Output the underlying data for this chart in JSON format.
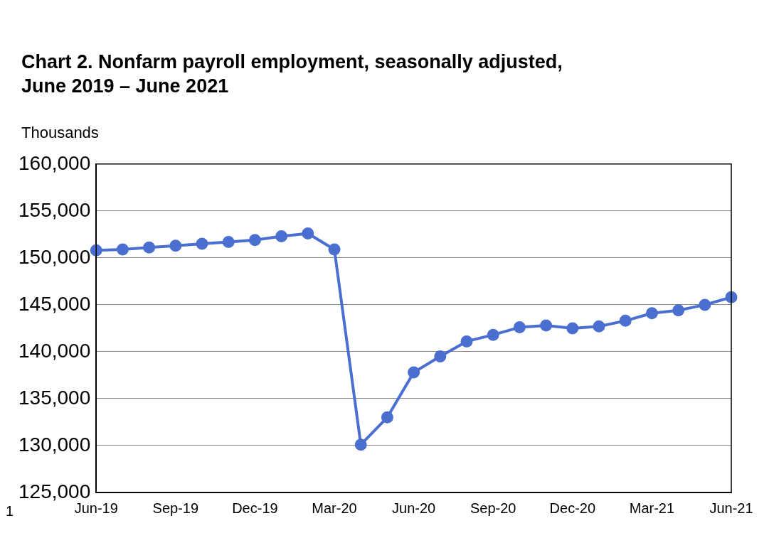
{
  "chart_data": {
    "type": "line",
    "title": "Chart 2. Nonfarm payroll employment, seasonally adjusted,\nJune 2019 – June 2021",
    "ylabel": "Thousands",
    "categories": [
      "Jun-19",
      null,
      null,
      "Sep-19",
      null,
      null,
      "Dec-19",
      null,
      null,
      "Mar-20",
      null,
      null,
      "Jun-20",
      null,
      null,
      "Sep-20",
      null,
      null,
      "Dec-20",
      null,
      null,
      "Mar-21",
      null,
      null,
      "Jun-21"
    ],
    "series": [
      {
        "color": "#4a6fd0",
        "values": [
          150800,
          150900,
          151100,
          151300,
          151500,
          151700,
          151900,
          152300,
          152600,
          150900,
          130100,
          133000,
          137800,
          139500,
          141100,
          141800,
          142600,
          142800,
          142500,
          142700,
          143300,
          144100,
          144400,
          145000,
          145800
        ]
      }
    ],
    "ylim": [
      125000,
      160000
    ],
    "yticks": [
      {
        "value": 125000,
        "label": "125,000"
      },
      {
        "value": 130000,
        "label": "130,000"
      },
      {
        "value": 135000,
        "label": "135,000"
      },
      {
        "value": 140000,
        "label": "140,000"
      },
      {
        "value": 145000,
        "label": "145,000"
      },
      {
        "value": 150000,
        "label": "150,000"
      },
      {
        "value": 155000,
        "label": "155,000"
      },
      {
        "value": 160000,
        "label": "160,000"
      }
    ],
    "grid": "y",
    "legend": false,
    "marker": "circle",
    "line_style": "solid",
    "annotations": [
      "1"
    ]
  }
}
